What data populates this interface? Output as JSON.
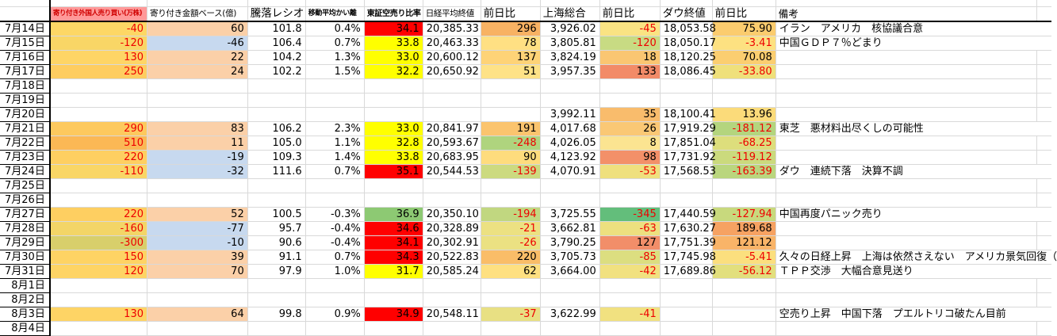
{
  "spreadsheet": {
    "columns": [
      {
        "key": "date",
        "label": ""
      },
      {
        "key": "foreign_open_trades",
        "label": "寄り付き外国人売り買い(万株)",
        "header_bg": "#ff9999",
        "header_fg": "#d00000"
      },
      {
        "key": "open_amount",
        "label": "寄り付き金額ベース(億)"
      },
      {
        "key": "updown_ratio",
        "label": "騰落レシオ"
      },
      {
        "key": "ma_deviation",
        "label": "移動平均かい離"
      },
      {
        "key": "short_ratio",
        "label": "東証空売り比率"
      },
      {
        "key": "nikkei_close",
        "label": "日経平均終値"
      },
      {
        "key": "nikkei_change",
        "label": "前日比"
      },
      {
        "key": "shanghai",
        "label": "上海総合"
      },
      {
        "key": "shanghai_change",
        "label": "前日比"
      },
      {
        "key": "dow_close",
        "label": "ダウ終値"
      },
      {
        "key": "dow_change",
        "label": "前日比"
      },
      {
        "key": "notes",
        "label": "備考"
      }
    ],
    "legend_colors": {
      "short_ratio_high": "#ff0000",
      "short_ratio_mid": "#ffff00",
      "short_ratio_low_green": "#8dc973",
      "positive_amount": "#fbd0a8",
      "negative_amount": "#c7d9ef",
      "header_pink": "#ff9999",
      "negative_text": "#ee0000"
    },
    "rows": [
      {
        "date": "7月14日",
        "cells": [
          {
            "t": "-40",
            "bg": "#fdd765",
            "red": true
          },
          {
            "t": "60",
            "bg": "#fbd0a8"
          },
          {
            "t": "101.8"
          },
          {
            "t": "0.4%"
          },
          {
            "t": "34.1",
            "bg": "#ff0000"
          },
          {
            "t": "20,385.33"
          },
          {
            "t": "296",
            "bg": "#f8b263"
          },
          {
            "t": "3,926.02"
          },
          {
            "t": "-45",
            "bg": "#fae383",
            "red": true
          },
          {
            "t": "18,053.58"
          },
          {
            "t": "75.90",
            "bg": "#fbcc6e"
          },
          {
            "t": "イラン　アメリカ　核協議合意"
          }
        ]
      },
      {
        "date": "7月15日",
        "cells": [
          {
            "t": "-120",
            "bg": "#f9d666",
            "red": true
          },
          {
            "t": "-46",
            "bg": "#c7d9ef"
          },
          {
            "t": "106.4"
          },
          {
            "t": "0.7%"
          },
          {
            "t": "33.8",
            "bg": "#ffff00"
          },
          {
            "t": "20,463.33"
          },
          {
            "t": "78",
            "bg": "#ffe083"
          },
          {
            "t": "3,805.81"
          },
          {
            "t": "-120",
            "bg": "#c8db83",
            "red": true
          },
          {
            "t": "18,050.17"
          },
          {
            "t": "-3.41",
            "bg": "#fde181",
            "red": true
          },
          {
            "t": "中国ＧＤＰ７％どまり"
          }
        ]
      },
      {
        "date": "7月16日",
        "cells": [
          {
            "t": "130",
            "bg": "#fed566",
            "red": true
          },
          {
            "t": "22",
            "bg": "#fbd0a8"
          },
          {
            "t": "104.2"
          },
          {
            "t": "1.3%"
          },
          {
            "t": "33.0",
            "bg": "#ffff00"
          },
          {
            "t": "20,600.12"
          },
          {
            "t": "137",
            "bg": "#fed377"
          },
          {
            "t": "3,824.19"
          },
          {
            "t": "18",
            "bg": "#fac672"
          },
          {
            "t": "18,120.25"
          },
          {
            "t": "70.08",
            "bg": "#fbce70"
          },
          {
            "t": ""
          }
        ]
      },
      {
        "date": "7月17日",
        "cells": [
          {
            "t": "250",
            "bg": "#fecd60",
            "red": true
          },
          {
            "t": "24",
            "bg": "#fbd0a8"
          },
          {
            "t": "102.2"
          },
          {
            "t": "1.5%"
          },
          {
            "t": "32.2",
            "bg": "#ffff00"
          },
          {
            "t": "20,650.92"
          },
          {
            "t": "51",
            "bg": "#fee287"
          },
          {
            "t": "3,957.35"
          },
          {
            "t": "133",
            "bg": "#f28b68"
          },
          {
            "t": "18,086.45"
          },
          {
            "t": "-33.80",
            "bg": "#efe07b",
            "red": true
          },
          {
            "t": ""
          }
        ]
      },
      {
        "date": "7月18日",
        "cells": []
      },
      {
        "date": "7月19日",
        "cells": []
      },
      {
        "date": "7月20日",
        "cells": [
          {
            "t": ""
          },
          {
            "t": ""
          },
          {
            "t": ""
          },
          {
            "t": ""
          },
          {
            "t": ""
          },
          {
            "t": ""
          },
          {
            "t": ""
          },
          {
            "t": "3,992.11"
          },
          {
            "t": "35",
            "bg": "#f9bc6c"
          },
          {
            "t": "18,100.41"
          },
          {
            "t": "13.96",
            "bg": "#fbdb7a"
          },
          {
            "t": ""
          }
        ]
      },
      {
        "date": "7月21日",
        "cells": [
          {
            "t": "290",
            "bg": "#fdc95e",
            "red": true
          },
          {
            "t": "83",
            "bg": "#fbd0a8"
          },
          {
            "t": "106.2"
          },
          {
            "t": "2.3%"
          },
          {
            "t": "33.0",
            "bg": "#ffff00"
          },
          {
            "t": "20,841.97"
          },
          {
            "t": "191",
            "bg": "#fbc46e"
          },
          {
            "t": "4,017.68"
          },
          {
            "t": "26",
            "bg": "#fac875"
          },
          {
            "t": "17,919.29"
          },
          {
            "t": "-181.12",
            "bg": "#b4d57e",
            "red": true
          },
          {
            "t": "東芝　悪材料出尽くしの可能性"
          }
        ]
      },
      {
        "date": "7月22日",
        "cells": [
          {
            "t": "510",
            "bg": "#fbb855",
            "red": true
          },
          {
            "t": "11",
            "bg": "#fbd0a8"
          },
          {
            "t": "105.0"
          },
          {
            "t": "1.1%"
          },
          {
            "t": "32.8",
            "bg": "#ffff00"
          },
          {
            "t": "20,593.67"
          },
          {
            "t": "-248",
            "bg": "#afd47e",
            "red": true
          },
          {
            "t": "4,026.05"
          },
          {
            "t": "8",
            "bg": "#fbe491"
          },
          {
            "t": "17,851.04"
          },
          {
            "t": "-68.25",
            "bg": "#ddde7c",
            "red": true
          },
          {
            "t": ""
          }
        ]
      },
      {
        "date": "7月23日",
        "cells": [
          {
            "t": "220",
            "bg": "#fecf61",
            "red": true
          },
          {
            "t": "-19",
            "bg": "#c7d9ef"
          },
          {
            "t": "109.3"
          },
          {
            "t": "1.4%"
          },
          {
            "t": "33.8",
            "bg": "#ffff00"
          },
          {
            "t": "20,683.95"
          },
          {
            "t": "90",
            "bg": "#fedc7d"
          },
          {
            "t": "4,123.92"
          },
          {
            "t": "98",
            "bg": "#f39069"
          },
          {
            "t": "17,731.92"
          },
          {
            "t": "-119.12",
            "bg": "#cbda7d",
            "red": true
          },
          {
            "t": ""
          }
        ]
      },
      {
        "date": "7月24日",
        "cells": [
          {
            "t": "-110",
            "bg": "#f9d666",
            "red": true
          },
          {
            "t": "-32",
            "bg": "#c7d9ef"
          },
          {
            "t": "111.6"
          },
          {
            "t": "0.7%"
          },
          {
            "t": "35.1",
            "bg": "#ff0000"
          },
          {
            "t": "20,544.53"
          },
          {
            "t": "-139",
            "bg": "#ccda80",
            "red": true
          },
          {
            "t": "4,070.91"
          },
          {
            "t": "-53",
            "bg": "#efe07e",
            "red": true
          },
          {
            "t": "17,568.53"
          },
          {
            "t": "-163.39",
            "bg": "#bad67e",
            "red": true
          },
          {
            "t": "ダウ　連続下落　決算不調"
          }
        ]
      },
      {
        "date": "7月25日",
        "cells": []
      },
      {
        "date": "7月26日",
        "cells": []
      },
      {
        "date": "7月27日",
        "cells": [
          {
            "t": "220",
            "bg": "#fecf61",
            "red": true
          },
          {
            "t": "52",
            "bg": "#fbd0a8"
          },
          {
            "t": "100.5"
          },
          {
            "t": "-0.3%"
          },
          {
            "t": "36.9",
            "bg": "#8dc973"
          },
          {
            "t": "20,350.10"
          },
          {
            "t": "-194",
            "bg": "#c1d780",
            "red": true
          },
          {
            "t": "3,725.55"
          },
          {
            "t": "-345",
            "bg": "#63be7b",
            "red": true
          },
          {
            "t": "17,440.59"
          },
          {
            "t": "-127.94",
            "bg": "#c8d97d",
            "red": true
          },
          {
            "t": "中国再度パニック売り"
          }
        ]
      },
      {
        "date": "7月28日",
        "cells": [
          {
            "t": "-160",
            "bg": "#f3d567",
            "red": true
          },
          {
            "t": "-77",
            "bg": "#c7d9ef"
          },
          {
            "t": "95.7"
          },
          {
            "t": "-0.4%"
          },
          {
            "t": "34.6",
            "bg": "#ff0000"
          },
          {
            "t": "20,328.89"
          },
          {
            "t": "-21",
            "bg": "#ece182",
            "red": true
          },
          {
            "t": "3,662.81"
          },
          {
            "t": "-63",
            "bg": "#ede07f",
            "red": true
          },
          {
            "t": "17,630.27"
          },
          {
            "t": "189.68",
            "bg": "#f6a262"
          },
          {
            "t": ""
          }
        ]
      },
      {
        "date": "7月29日",
        "cells": [
          {
            "t": "-300",
            "bg": "#d8cf6b",
            "red": true
          },
          {
            "t": "-10",
            "bg": "#c7d9ef"
          },
          {
            "t": "90.6"
          },
          {
            "t": "-0.4%"
          },
          {
            "t": "34.1",
            "bg": "#ff0000"
          },
          {
            "t": "20,302.91"
          },
          {
            "t": "-26",
            "bg": "#ebe182",
            "red": true
          },
          {
            "t": "3,790.25"
          },
          {
            "t": "127",
            "bg": "#f28e69"
          },
          {
            "t": "17,751.39"
          },
          {
            "t": "121.12",
            "bg": "#f9b468"
          },
          {
            "t": ""
          }
        ]
      },
      {
        "date": "7月30日",
        "cells": [
          {
            "t": "150",
            "bg": "#fed364",
            "red": true
          },
          {
            "t": "39",
            "bg": "#fbd0a8"
          },
          {
            "t": "91.1"
          },
          {
            "t": "0.7%"
          },
          {
            "t": "34.3",
            "bg": "#ff0000"
          },
          {
            "t": "20,522.83"
          },
          {
            "t": "220",
            "bg": "#fabd68"
          },
          {
            "t": "3,705.73"
          },
          {
            "t": "-85",
            "bg": "#dcde80",
            "red": true
          },
          {
            "t": "17,745.98"
          },
          {
            "t": "-5.41",
            "bg": "#fbdf7e",
            "red": true
          },
          {
            "t": "久々の日経上昇　上海は依然さえない　アメリカ景気回復（"
          }
        ]
      },
      {
        "date": "7月31日",
        "cells": [
          {
            "t": "120",
            "bg": "#fed465",
            "red": true
          },
          {
            "t": "70",
            "bg": "#fbd0a8"
          },
          {
            "t": "97.9"
          },
          {
            "t": "1.0%"
          },
          {
            "t": "31.7",
            "bg": "#ffff00"
          },
          {
            "t": "20,585.24"
          },
          {
            "t": "62",
            "bg": "#fee081"
          },
          {
            "t": "3,664.00"
          },
          {
            "t": "-42",
            "bg": "#f1e180",
            "red": true
          },
          {
            "t": "17,689.86"
          },
          {
            "t": "-56.12",
            "bg": "#e2df7d",
            "red": true
          },
          {
            "t": "ＴＰＰ交渉　大幅合意見送り"
          }
        ]
      },
      {
        "date": "8月1日",
        "cells": []
      },
      {
        "date": "8月2日",
        "cells": []
      },
      {
        "date": "8月3日",
        "cells": [
          {
            "t": "130",
            "bg": "#fed465",
            "red": true
          },
          {
            "t": "64",
            "bg": "#fbd0a8"
          },
          {
            "t": "99.8"
          },
          {
            "t": "0.9%"
          },
          {
            "t": "34.9",
            "bg": "#ff0000"
          },
          {
            "t": "20,548.11"
          },
          {
            "t": "-37",
            "bg": "#e8e083",
            "red": true
          },
          {
            "t": "3,622.99"
          },
          {
            "t": "-41",
            "bg": "#f1e180",
            "red": true
          },
          {
            "t": ""
          },
          {
            "t": ""
          },
          {
            "t": "空売り上昇　中国下落　プエルトリコ破たん目前"
          }
        ]
      },
      {
        "date": "8月4日",
        "cells": []
      }
    ]
  }
}
